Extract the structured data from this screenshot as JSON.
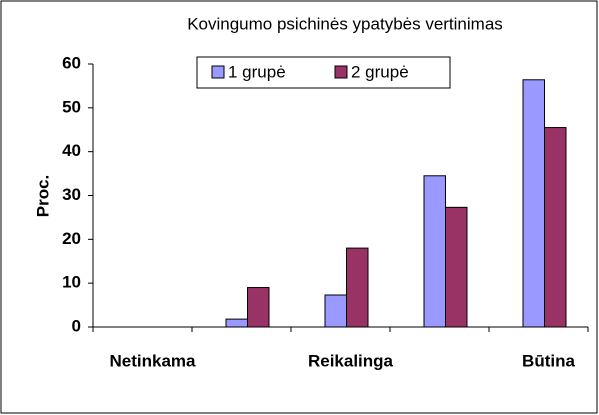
{
  "chart_data": {
    "type": "bar",
    "title": "Kovingumo psichinės ypatybės vertinimas",
    "y_label": "Proc.",
    "categories": [
      "Netinkama",
      null,
      "Reikalinga",
      null,
      "Būtina"
    ],
    "series": [
      {
        "name": "1 grupė",
        "color": "#9999ff",
        "values": [
          0,
          1.8,
          7.3,
          34.5,
          56.4
        ]
      },
      {
        "name": "2 grupė",
        "color": "#993366",
        "values": [
          0,
          9,
          18,
          27.3,
          45.5
        ]
      }
    ],
    "ylim": [
      0,
      60
    ],
    "yticks": [
      0,
      10,
      20,
      30,
      40,
      50,
      60
    ],
    "grid": false
  }
}
